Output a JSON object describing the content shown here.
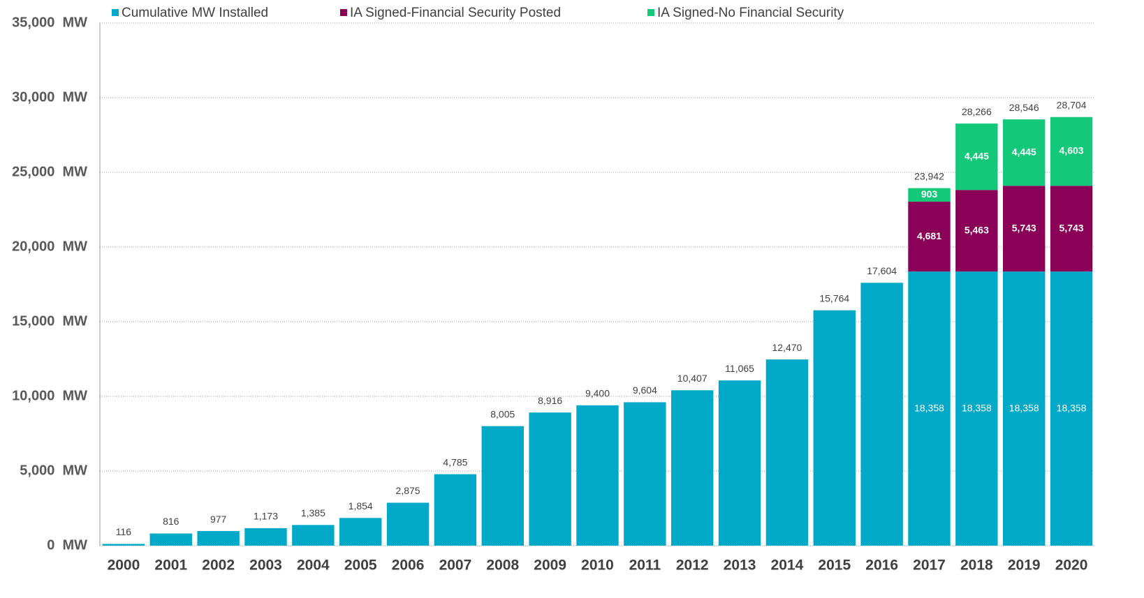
{
  "chart_data": {
    "type": "stacked_bar",
    "categories": [
      "2000",
      "2001",
      "2002",
      "2003",
      "2004",
      "2005",
      "2006",
      "2007",
      "2008",
      "2009",
      "2010",
      "2011",
      "2012",
      "2013",
      "2014",
      "2015",
      "2016",
      "2017",
      "2018",
      "2019",
      "2020"
    ],
    "series": [
      {
        "name": "Cumulative MW Installed",
        "color": "#00a9c8",
        "values": [
          116,
          816,
          977,
          1173,
          1385,
          1854,
          2875,
          4785,
          8005,
          8916,
          9400,
          9604,
          10407,
          11065,
          12470,
          15764,
          17604,
          18358,
          18358,
          18358,
          18358
        ],
        "value_labels": [
          "116",
          "816",
          "977",
          "1,173",
          "1,385",
          "1,854",
          "2,875",
          "4,785",
          "8,005",
          "8,916",
          "9,400",
          "9,604",
          "10,407",
          "11,065",
          "12,470",
          "15,764",
          "17,604",
          "18,358",
          "18,358",
          "18,358",
          "18,358"
        ]
      },
      {
        "name": "IA Signed-Financial Security Posted",
        "color": "#8b0057",
        "values": [
          null,
          null,
          null,
          null,
          null,
          null,
          null,
          null,
          null,
          null,
          null,
          null,
          null,
          null,
          null,
          null,
          null,
          4681,
          5463,
          5743,
          5743
        ],
        "value_labels": [
          null,
          null,
          null,
          null,
          null,
          null,
          null,
          null,
          null,
          null,
          null,
          null,
          null,
          null,
          null,
          null,
          null,
          "4,681",
          "5,463",
          "5,743",
          "5,743"
        ]
      },
      {
        "name": "IA Signed-No Financial Security",
        "color": "#14c87a",
        "values": [
          null,
          null,
          null,
          null,
          null,
          null,
          null,
          null,
          null,
          null,
          null,
          null,
          null,
          null,
          null,
          null,
          null,
          903,
          4445,
          4445,
          4603
        ],
        "value_labels": [
          null,
          null,
          null,
          null,
          null,
          null,
          null,
          null,
          null,
          null,
          null,
          null,
          null,
          null,
          null,
          null,
          null,
          "903",
          "4,445",
          "4,445",
          "4,603"
        ]
      }
    ],
    "totals": [
      null,
      null,
      null,
      null,
      null,
      null,
      null,
      null,
      null,
      null,
      null,
      null,
      null,
      null,
      null,
      null,
      null,
      23942,
      28266,
      28546,
      28704
    ],
    "total_labels": [
      null,
      null,
      null,
      null,
      null,
      null,
      null,
      null,
      null,
      null,
      null,
      null,
      null,
      null,
      null,
      null,
      null,
      "23,942",
      "28,266",
      "28,546",
      "28,704"
    ],
    "ylim": [
      0,
      35000
    ],
    "yticks": [
      {
        "value": 0,
        "label": "0  MW"
      },
      {
        "value": 5000,
        "label": "5,000  MW"
      },
      {
        "value": 10000,
        "label": "10,000  MW"
      },
      {
        "value": 15000,
        "label": "15,000  MW"
      },
      {
        "value": 20000,
        "label": "20,000  MW"
      },
      {
        "value": 25000,
        "label": "25,000  MW"
      },
      {
        "value": 30000,
        "label": "30,000  MW"
      },
      {
        "value": 35000,
        "label": "35,000  MW"
      }
    ],
    "grid": true,
    "legend": "top"
  }
}
